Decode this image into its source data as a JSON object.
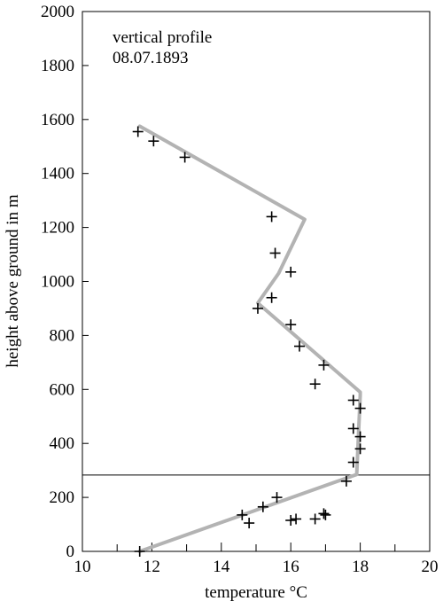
{
  "chart_data": {
    "type": "scatter",
    "xlabel": "temperature °C",
    "ylabel": "height above ground in m",
    "xlim": [
      10,
      20
    ],
    "ylim": [
      0,
      2000
    ],
    "xticks": [
      "10",
      "12",
      "14",
      "16",
      "18",
      "20"
    ],
    "yticks": [
      "0",
      "200",
      "400",
      "600",
      "800",
      "1000",
      "1200",
      "1400",
      "1600",
      "1800",
      "2000"
    ],
    "minor_xticks": [
      11,
      13,
      15,
      17,
      19
    ],
    "grid": false,
    "annotation": [
      "vertical profile",
      "08.07.1893"
    ],
    "reference_line_height": 283,
    "line_color": "#b3b3b3",
    "marker_color": "#000000",
    "profile_line": {
      "x": [
        11.65,
        17.9,
        17.9,
        18.0,
        18.0,
        15.05,
        15.65,
        15.65,
        16.4,
        16.4,
        11.65
      ],
      "y": [
        0,
        285,
        290,
        580,
        590,
        920,
        1030,
        1030,
        1230,
        1230,
        1575
      ]
    },
    "measurements": {
      "x": [
        11.6,
        12.05,
        12.95,
        15.45,
        15.55,
        16.0,
        15.45,
        15.05,
        16.0,
        16.25,
        16.95,
        16.7,
        17.8,
        18.0,
        17.8,
        18.0,
        18.0,
        17.8,
        17.6,
        15.6,
        15.2,
        14.6,
        14.8,
        16.0,
        16.15,
        16.95,
        17.0,
        16.7,
        11.65
      ],
      "y": [
        1555,
        1520,
        1460,
        1240,
        1105,
        1035,
        940,
        900,
        840,
        760,
        690,
        620,
        560,
        530,
        455,
        425,
        380,
        330,
        260,
        200,
        165,
        135,
        105,
        115,
        120,
        140,
        135,
        120,
        0
      ]
    }
  }
}
